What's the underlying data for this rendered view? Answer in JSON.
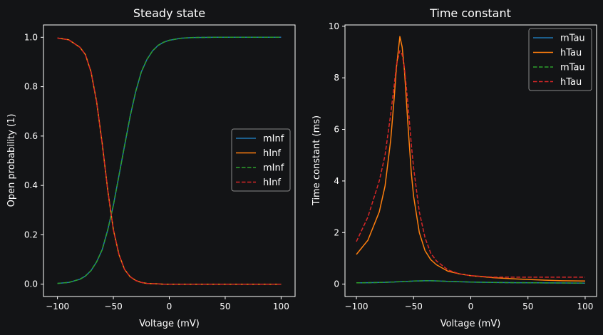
{
  "chart_data": [
    {
      "type": "line",
      "title": "Steady state",
      "xlabel": "Voltage (mV)",
      "ylabel": "Open probability (1)",
      "xlim": [
        -112.5,
        112.5
      ],
      "ylim": [
        -0.05,
        1.05
      ],
      "xticks": [
        -100,
        -50,
        0,
        50,
        100
      ],
      "yticks": [
        0.0,
        0.2,
        0.4,
        0.6,
        0.8,
        1.0
      ],
      "ytick_labels": [
        "0.0",
        "0.2",
        "0.4",
        "0.6",
        "0.8",
        "1.0"
      ],
      "grid": false,
      "legend": "center-right",
      "x": [
        -100,
        -90,
        -80,
        -75,
        -70,
        -65,
        -60,
        -55,
        -50,
        -45,
        -40,
        -35,
        -30,
        -25,
        -20,
        -15,
        -10,
        -5,
        0,
        10,
        20,
        40,
        60,
        80,
        100
      ],
      "series": [
        {
          "name": "mInf",
          "color": "#1f77b4",
          "dash": "solid",
          "values": [
            0.003,
            0.007,
            0.02,
            0.033,
            0.055,
            0.09,
            0.14,
            0.22,
            0.32,
            0.44,
            0.56,
            0.68,
            0.78,
            0.86,
            0.91,
            0.945,
            0.967,
            0.98,
            0.988,
            0.996,
            0.999,
            1.0,
            1.0,
            1.0,
            1.0
          ]
        },
        {
          "name": "hInf",
          "color": "#ff7f0e",
          "dash": "solid",
          "values": [
            0.997,
            0.99,
            0.96,
            0.93,
            0.86,
            0.74,
            0.57,
            0.38,
            0.22,
            0.12,
            0.06,
            0.03,
            0.015,
            0.007,
            0.003,
            0.002,
            0.001,
            0.0,
            0.0,
            0.0,
            0.0,
            0.0,
            0.0,
            0.0,
            0.0
          ]
        },
        {
          "name": "mInf",
          "color": "#2ca02c",
          "dash": "dashed",
          "values": [
            0.003,
            0.007,
            0.02,
            0.033,
            0.055,
            0.09,
            0.14,
            0.22,
            0.32,
            0.44,
            0.56,
            0.68,
            0.78,
            0.86,
            0.91,
            0.945,
            0.967,
            0.98,
            0.988,
            0.996,
            0.999,
            1.0,
            1.0,
            1.0,
            1.0
          ]
        },
        {
          "name": "hInf",
          "color": "#d62728",
          "dash": "dashed",
          "values": [
            0.997,
            0.99,
            0.96,
            0.93,
            0.86,
            0.74,
            0.57,
            0.38,
            0.22,
            0.12,
            0.06,
            0.03,
            0.015,
            0.007,
            0.003,
            0.002,
            0.001,
            0.0,
            0.0,
            0.0,
            0.0,
            0.0,
            0.0,
            0.0,
            0.0
          ]
        }
      ]
    },
    {
      "type": "line",
      "title": "Time constant",
      "xlabel": "Voltage (mV)",
      "ylabel": "Time constant (ms)",
      "xlim": [
        -110,
        110
      ],
      "ylim": [
        -0.48,
        10.05
      ],
      "xticks": [
        -100,
        -50,
        0,
        50,
        100
      ],
      "yticks": [
        0,
        2,
        4,
        6,
        8,
        10
      ],
      "ytick_labels": [
        "0",
        "2",
        "4",
        "6",
        "8",
        "10"
      ],
      "grid": false,
      "legend": "top-right",
      "x": [
        -100,
        -90,
        -80,
        -75,
        -70,
        -67,
        -65,
        -62,
        -60,
        -58,
        -55,
        -52,
        -50,
        -45,
        -40,
        -35,
        -30,
        -20,
        -10,
        0,
        20,
        40,
        60,
        80,
        100
      ],
      "series": [
        {
          "name": "mTau",
          "color": "#1f77b4",
          "dash": "solid",
          "values": [
            0.05,
            0.055,
            0.065,
            0.07,
            0.08,
            0.085,
            0.09,
            0.095,
            0.1,
            0.105,
            0.11,
            0.115,
            0.12,
            0.125,
            0.13,
            0.13,
            0.125,
            0.11,
            0.095,
            0.08,
            0.065,
            0.055,
            0.05,
            0.045,
            0.04
          ]
        },
        {
          "name": "hTau",
          "color": "#ff7f0e",
          "dash": "solid",
          "values": [
            1.15,
            1.7,
            2.8,
            3.8,
            5.6,
            7.2,
            8.4,
            9.6,
            9.2,
            8.3,
            6.2,
            4.3,
            3.4,
            2.0,
            1.3,
            0.95,
            0.75,
            0.5,
            0.4,
            0.33,
            0.25,
            0.2,
            0.16,
            0.13,
            0.12
          ]
        },
        {
          "name": "mTau",
          "color": "#2ca02c",
          "dash": "dashed",
          "values": [
            0.05,
            0.055,
            0.065,
            0.07,
            0.08,
            0.085,
            0.09,
            0.095,
            0.1,
            0.105,
            0.11,
            0.115,
            0.12,
            0.125,
            0.13,
            0.13,
            0.125,
            0.11,
            0.095,
            0.08,
            0.065,
            0.055,
            0.05,
            0.045,
            0.04
          ]
        },
        {
          "name": "hTau",
          "color": "#d62728",
          "dash": "dashed",
          "values": [
            1.65,
            2.6,
            4.0,
            5.0,
            6.6,
            7.7,
            8.5,
            9.05,
            8.9,
            8.4,
            7.0,
            5.4,
            4.5,
            2.8,
            1.8,
            1.2,
            0.9,
            0.55,
            0.4,
            0.33,
            0.27,
            0.27,
            0.27,
            0.27,
            0.27
          ]
        }
      ]
    }
  ],
  "style": {
    "background": "#131416",
    "axes_color": "#ffffff",
    "legend_background": "#131416",
    "legend_border": "#8a8a8a"
  }
}
